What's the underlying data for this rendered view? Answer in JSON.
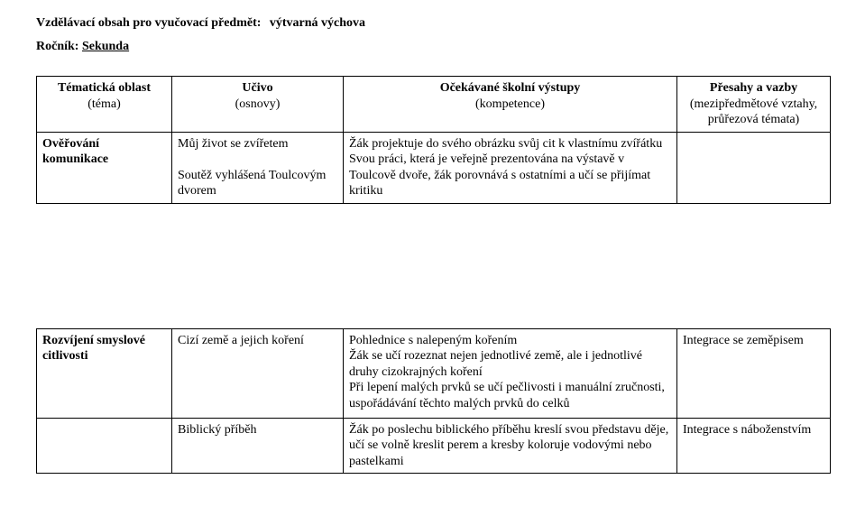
{
  "doc": {
    "title_label": "Vzdělávací obsah pro vyučovací předmět:",
    "subject": "výtvarná výchova",
    "grade_label": "Ročník:",
    "grade_value": "Sekunda"
  },
  "headers": {
    "col1_line1": "Tématická oblast",
    "col1_line2": "(téma)",
    "col2_line1": "Učivo",
    "col2_line2": "(osnovy)",
    "col3_line1": "Očekávané školní výstupy",
    "col3_line2": "(kompetence)",
    "col4_line1": "Přesahy a vazby",
    "col4_line2": "(mezipředmětové vztahy, průřezová témata)"
  },
  "rows": [
    {
      "theme": "Ověřování komunikace",
      "lesson": "Můj život se zvířetem\n\nSoutěž vyhlášená Toulcovým dvorem",
      "outcome": "Žák projektuje do svého obrázku svůj cit k vlastnímu zvířátku\nSvou práci, která je veřejně prezentována na výstavě v Toulcově dvoře, žák porovnává s ostatními a učí se přijímat kritiku",
      "link": ""
    },
    {
      "theme": "Rozvíjení smyslové citlivosti",
      "lesson": "Cizí země a jejich koření",
      "outcome": "Pohlednice s nalepeným kořením\nŽák se učí rozeznat nejen jednotlivé země, ale i jednotlivé druhy cizokrajných koření\nPři lepení malých prvků se učí pečlivosti i manuální zručnosti, uspořádávání těchto malých prvků do celků",
      "link": "Integrace se zeměpisem"
    },
    {
      "theme": "",
      "lesson": "Biblický příběh",
      "outcome": "Žák po poslechu biblického příběhu kreslí svou představu děje, učí se volně kreslit perem a kresby koloruje vodovými nebo pastelkami",
      "link": "Integrace s náboženstvím"
    }
  ]
}
